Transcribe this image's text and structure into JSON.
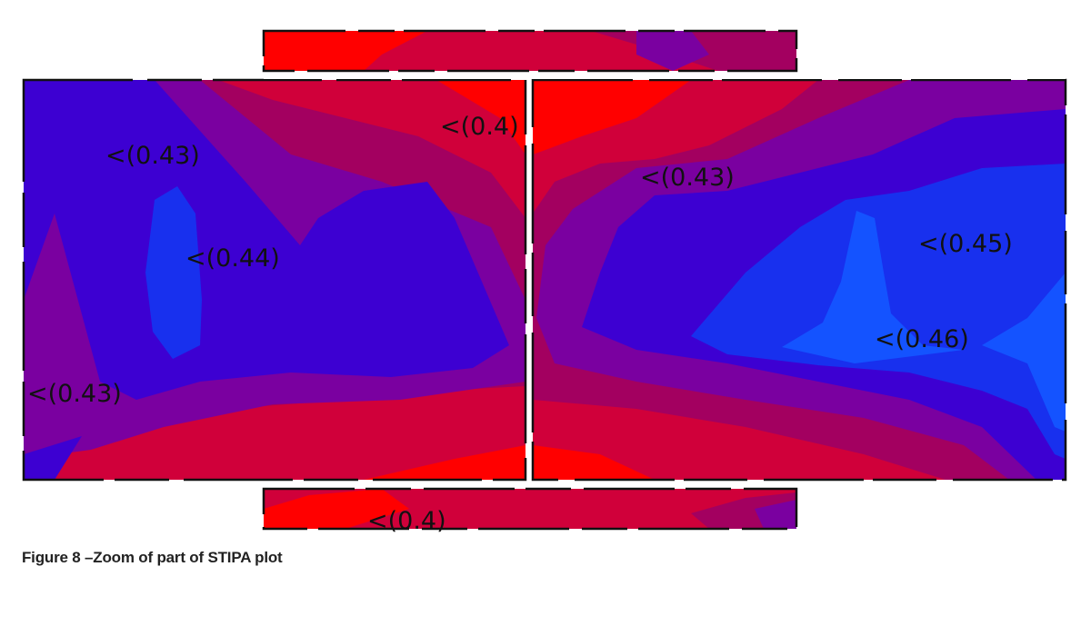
{
  "caption": "Figure 8 –Zoom of part of STIPA plot",
  "chart_data": {
    "type": "heatmap",
    "title": "",
    "xlabel": "",
    "ylabel": "",
    "legend": "none",
    "grid": false,
    "colors": {
      "lowest": "#ff0000",
      "low": "#d0003a",
      "mid_low": "#a30060",
      "mid": "#7a00a0",
      "mid_high": "#3d00d2",
      "high": "#1830ee",
      "highest": "#1453ff"
    },
    "contour_labels": [
      "<(0.43)",
      "<(0.4)",
      "<(0.44)",
      "<(0.43)",
      "<(0.43)",
      "<(0.45)",
      "<(0.46)",
      "<(0.4)"
    ],
    "contour_values": [
      0.43,
      0.4,
      0.44,
      0.43,
      0.43,
      0.45,
      0.46,
      0.4
    ]
  }
}
